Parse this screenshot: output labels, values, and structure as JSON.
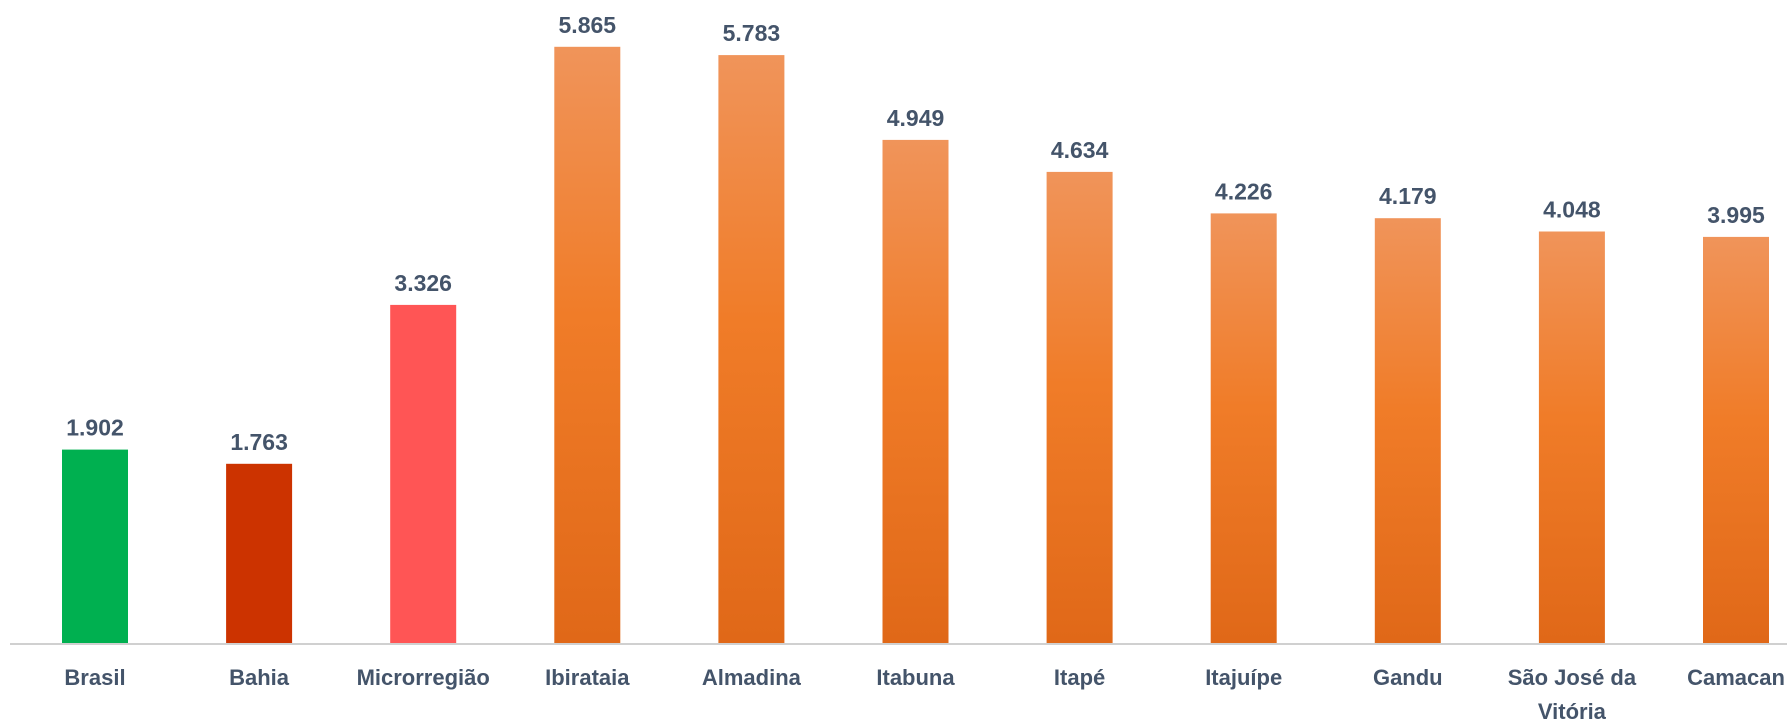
{
  "chart_data": {
    "type": "bar",
    "categories": [
      "Brasil",
      "Bahia",
      "Microrregião",
      "Ibirataia",
      "Almadina",
      "Itabuna",
      "Itapé",
      "Itajuípe",
      "Gandu",
      "São José da Vitória",
      "Camacan"
    ],
    "tick_label_lines": [
      [
        "Brasil"
      ],
      [
        "Bahia"
      ],
      [
        "Microrregião"
      ],
      [
        "Ibirataia"
      ],
      [
        "Almadina"
      ],
      [
        "Itabuna"
      ],
      [
        "Itapé"
      ],
      [
        "Itajuípe"
      ],
      [
        "Gandu"
      ],
      [
        "São José da",
        "Vitória"
      ],
      [
        "Camacan"
      ]
    ],
    "values": [
      1902,
      1763,
      3326,
      5865,
      5783,
      4949,
      4634,
      4226,
      4179,
      4048,
      3995
    ],
    "data_labels": [
      "1.902",
      "1.763",
      "3.326",
      "5.865",
      "5.783",
      "4.949",
      "4.634",
      "4.226",
      "4.179",
      "4.048",
      "3.995"
    ],
    "bar_colors": [
      "#00b050",
      "#cc3300",
      "#ff5555",
      "orange-gradient",
      "orange-gradient",
      "orange-gradient",
      "orange-gradient",
      "orange-gradient",
      "orange-gradient",
      "orange-gradient",
      "orange-gradient"
    ],
    "gradient_colors": {
      "top": "#f0945a",
      "middle": "#f07c28",
      "bottom": "#e06818"
    },
    "label_color": "#44546a",
    "axis_color": "#d0d0d0",
    "title": "",
    "xlabel": "",
    "ylabel": "",
    "ylim": [
      0,
      6000
    ],
    "grid": false,
    "legend": "none"
  }
}
